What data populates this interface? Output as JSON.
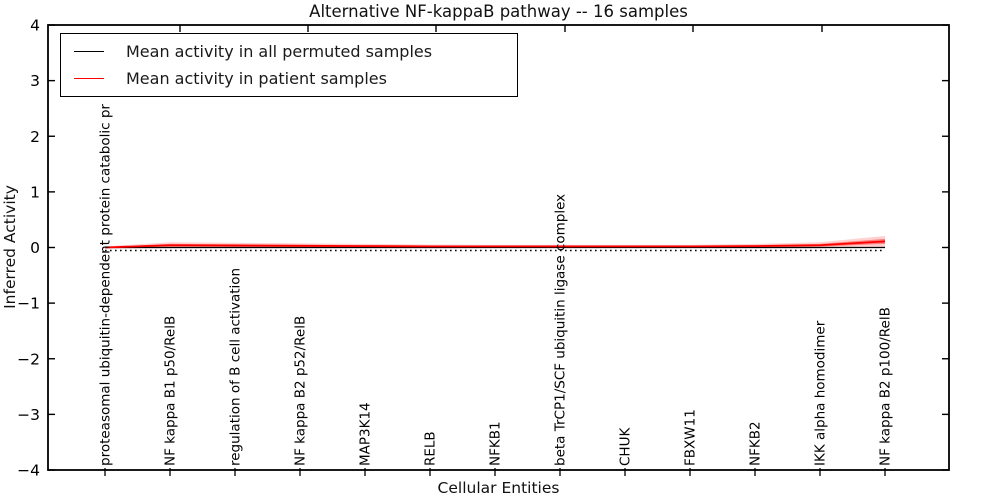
{
  "chart": {
    "title": "Alternative NF-kappaB pathway -- 16 samples",
    "xlabel": "Cellular Entities",
    "ylabel": "Inferred Activity",
    "legend": [
      {
        "label": "Mean activity in all permuted samples",
        "color": "#000000"
      },
      {
        "label": "Mean activity in patient samples",
        "color": "#ff0000"
      }
    ]
  },
  "chart_data": {
    "type": "line",
    "title": "Alternative NF-kappaB pathway -- 16 samples",
    "xlabel": "Cellular Entities",
    "ylabel": "Inferred Activity",
    "ylim": [
      -4,
      4
    ],
    "yticks": [
      -4,
      -3,
      -2,
      -1,
      0,
      1,
      2,
      3,
      4
    ],
    "grid": false,
    "legend_position": "upper left",
    "categories": [
      "proteasomal ubiquitin-dependent protein catabolic pr",
      "NF kappa B1 p50/RelB",
      "regulation of B cell activation",
      "NF kappa B2 p52/RelB",
      "MAP3K14",
      "RELB",
      "NFKB1",
      "beta TrCP1/SCF ubiquitin ligase complex",
      "CHUK",
      "FBXW11",
      "NFKB2",
      "IKK alpha homodimer",
      "NF kappa B2 p100/RelB"
    ],
    "series": [
      {
        "name": "Mean activity in all permuted samples",
        "color": "#000000",
        "style": "solid",
        "values": [
          0,
          0,
          0,
          0,
          0,
          0,
          0,
          0,
          0,
          0,
          0,
          0,
          0
        ]
      },
      {
        "name": "Mean activity in patient samples",
        "color": "#ff0000",
        "style": "solid",
        "values": [
          0.0,
          0.04,
          0.035,
          0.03,
          0.025,
          0.02,
          0.02,
          0.02,
          0.02,
          0.02,
          0.025,
          0.04,
          0.11
        ],
        "band_delta": [
          0.02,
          0.055,
          0.05,
          0.045,
          0.04,
          0.035,
          0.03,
          0.03,
          0.03,
          0.03,
          0.04,
          0.055,
          0.1
        ],
        "band_color": "#ff0000"
      }
    ],
    "zero_reference_line": {
      "value": 0,
      "style": "dotted",
      "color": "#000000"
    }
  }
}
